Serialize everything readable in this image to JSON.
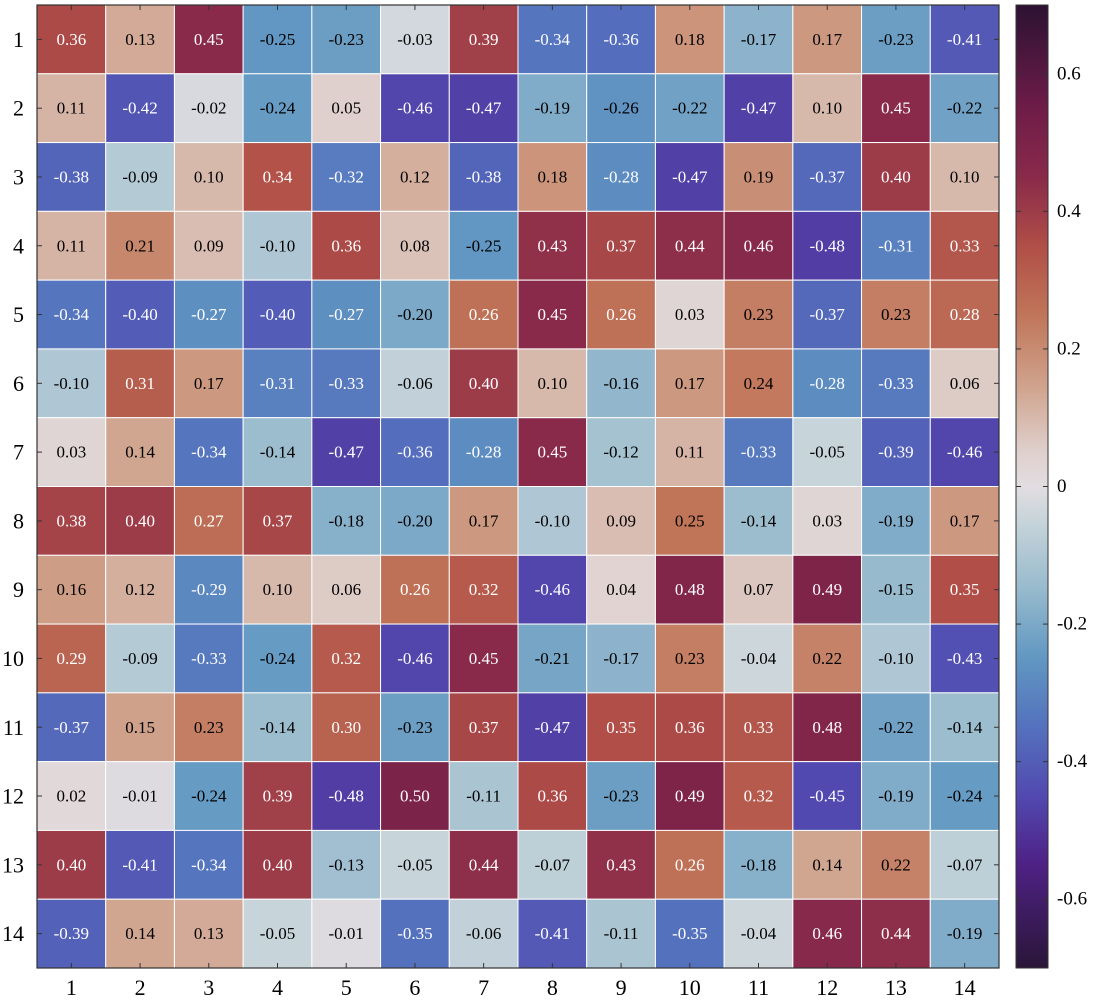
{
  "chart_data": {
    "type": "heatmap",
    "title": "",
    "xlabel": "",
    "ylabel": "",
    "x_tick_labels": [
      "1",
      "2",
      "3",
      "4",
      "5",
      "6",
      "7",
      "8",
      "9",
      "10",
      "11",
      "12",
      "13",
      "14"
    ],
    "y_tick_labels": [
      "1",
      "2",
      "3",
      "4",
      "5",
      "6",
      "7",
      "8",
      "9",
      "10",
      "11",
      "12",
      "13",
      "14"
    ],
    "values": [
      [
        0.36,
        0.13,
        0.45,
        -0.25,
        -0.23,
        -0.03,
        0.39,
        -0.34,
        -0.36,
        0.18,
        -0.17,
        0.17,
        -0.23,
        -0.41
      ],
      [
        0.11,
        -0.42,
        -0.02,
        -0.24,
        0.05,
        -0.46,
        -0.47,
        -0.19,
        -0.26,
        -0.22,
        -0.47,
        0.1,
        0.45,
        -0.22
      ],
      [
        -0.38,
        -0.09,
        0.1,
        0.34,
        -0.32,
        0.12,
        -0.38,
        0.18,
        -0.28,
        -0.47,
        0.19,
        -0.37,
        0.4,
        0.1
      ],
      [
        0.11,
        0.21,
        0.09,
        -0.1,
        0.36,
        0.08,
        -0.25,
        0.43,
        0.37,
        0.44,
        0.46,
        -0.48,
        -0.31,
        0.33
      ],
      [
        -0.34,
        -0.4,
        -0.27,
        -0.4,
        -0.27,
        -0.2,
        0.26,
        0.45,
        0.26,
        0.03,
        0.23,
        -0.37,
        0.23,
        0.28
      ],
      [
        -0.1,
        0.31,
        0.17,
        -0.31,
        -0.33,
        -0.06,
        0.4,
        0.1,
        -0.16,
        0.17,
        0.24,
        -0.28,
        -0.33,
        0.06
      ],
      [
        0.03,
        0.14,
        -0.34,
        -0.14,
        -0.47,
        -0.36,
        -0.28,
        0.45,
        -0.12,
        0.11,
        -0.33,
        -0.05,
        -0.39,
        -0.46
      ],
      [
        0.38,
        0.4,
        0.27,
        0.37,
        -0.18,
        -0.2,
        0.17,
        -0.1,
        0.09,
        0.25,
        -0.14,
        0.03,
        -0.19,
        0.17
      ],
      [
        0.16,
        0.12,
        -0.29,
        0.1,
        0.06,
        0.26,
        0.32,
        -0.46,
        0.04,
        0.48,
        0.07,
        0.49,
        -0.15,
        0.35
      ],
      [
        0.29,
        -0.09,
        -0.33,
        -0.24,
        0.32,
        -0.46,
        0.45,
        -0.21,
        -0.17,
        0.23,
        -0.04,
        0.22,
        -0.1,
        -0.43
      ],
      [
        -0.37,
        0.15,
        0.23,
        -0.14,
        0.3,
        -0.23,
        0.37,
        -0.47,
        0.35,
        0.36,
        0.33,
        0.48,
        -0.22,
        -0.14
      ],
      [
        0.02,
        -0.01,
        -0.24,
        0.39,
        -0.48,
        0.5,
        -0.11,
        0.36,
        -0.23,
        0.49,
        0.32,
        -0.45,
        -0.19,
        -0.24
      ],
      [
        0.4,
        -0.41,
        -0.34,
        0.4,
        -0.13,
        -0.05,
        0.44,
        -0.07,
        0.43,
        0.26,
        -0.18,
        0.14,
        0.22,
        -0.07
      ],
      [
        -0.39,
        0.14,
        0.13,
        -0.05,
        -0.01,
        -0.35,
        -0.06,
        -0.41,
        -0.11,
        -0.35,
        -0.04,
        0.46,
        0.44,
        -0.19
      ]
    ],
    "value_format": "2 decimals",
    "colorbar": {
      "range": [
        -0.7,
        0.7
      ],
      "ticks": [
        -0.6,
        -0.4,
        -0.2,
        0,
        0.2,
        0.4,
        0.6
      ],
      "tick_labels": [
        "-0.6",
        "-0.4",
        "-0.2",
        "0",
        "0.2",
        "0.4",
        "0.6"
      ],
      "colormap": "twilight-like diverging",
      "stops": [
        {
          "v": -0.7,
          "color": "#2a1638"
        },
        {
          "v": -0.55,
          "color": "#4e2184"
        },
        {
          "v": -0.45,
          "color": "#5249b0"
        },
        {
          "v": -0.35,
          "color": "#5471bd"
        },
        {
          "v": -0.25,
          "color": "#6197c2"
        },
        {
          "v": -0.15,
          "color": "#97bacd"
        },
        {
          "v": -0.05,
          "color": "#c7d4da"
        },
        {
          "v": 0.0,
          "color": "#e2dde1"
        },
        {
          "v": 0.05,
          "color": "#dfd0cd"
        },
        {
          "v": 0.15,
          "color": "#cfa18a"
        },
        {
          "v": 0.25,
          "color": "#c07559"
        },
        {
          "v": 0.35,
          "color": "#b04e47"
        },
        {
          "v": 0.45,
          "color": "#892a4a"
        },
        {
          "v": 0.55,
          "color": "#6e1c48"
        },
        {
          "v": 0.7,
          "color": "#2c1233"
        }
      ]
    },
    "grid": false,
    "legend": "colorbar-right"
  }
}
